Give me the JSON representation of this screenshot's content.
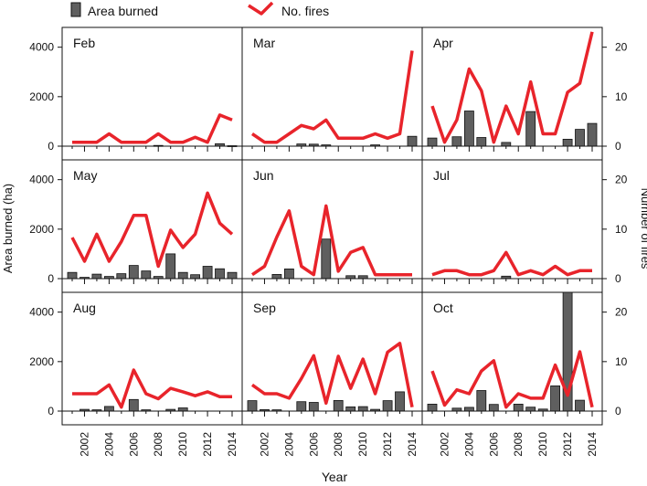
{
  "legend": {
    "bar_label": "Area burned",
    "line_label": "No. fires",
    "placement": "top"
  },
  "axes": {
    "xlabel": "Year",
    "ylabel_left": "Area burned (ha)",
    "ylabel_right": "Number of fires",
    "x_ticks": [
      "2002",
      "2004",
      "2006",
      "2008",
      "2010",
      "2012",
      "2014"
    ],
    "left_ticks": [
      "0",
      "2000",
      "4000"
    ],
    "right_ticks": [
      "0",
      "10",
      "20"
    ]
  },
  "colors": {
    "bar_fill": "#5f5f5f",
    "bar_stroke": "#111111",
    "line": "#e8242b",
    "frame": "#111111"
  },
  "chart_data": {
    "type": "bar",
    "layout": "3x3 small multiples",
    "grid": false,
    "years": [
      2001,
      2002,
      2003,
      2004,
      2005,
      2006,
      2007,
      2008,
      2009,
      2010,
      2011,
      2012,
      2013,
      2014
    ],
    "y_left": {
      "label": "Area burned (ha)",
      "range": [
        0,
        4800
      ]
    },
    "y_right": {
      "label": "Number of fires",
      "range": [
        0,
        24
      ]
    },
    "panels": [
      {
        "month": "Feb",
        "area": [
          0,
          0,
          0,
          0,
          0,
          0,
          0,
          30,
          0,
          0,
          0,
          0,
          100,
          20
        ],
        "fires": [
          0.8,
          0.8,
          0.8,
          2.5,
          0.8,
          0.8,
          0.8,
          2.5,
          0.8,
          0.8,
          1.8,
          0.8,
          6.3,
          5.3
        ]
      },
      {
        "month": "Mar",
        "area": [
          0,
          0,
          0,
          0,
          90,
          80,
          50,
          0,
          0,
          0,
          50,
          0,
          0,
          400
        ],
        "fires": [
          2.5,
          0.8,
          0.8,
          2.5,
          4.2,
          3.5,
          5.3,
          1.6,
          1.6,
          1.6,
          2.5,
          1.6,
          2.5,
          19.3
        ]
      },
      {
        "month": "Apr",
        "area": [
          330,
          0,
          380,
          1420,
          350,
          0,
          150,
          0,
          1400,
          0,
          0,
          280,
          680,
          920
        ],
        "fires": [
          8.1,
          0.8,
          5.3,
          15.6,
          11.2,
          0.8,
          8.1,
          2.5,
          13.0,
          2.5,
          2.5,
          10.9,
          12.7,
          23.1
        ]
      },
      {
        "month": "May",
        "area": [
          250,
          50,
          180,
          90,
          200,
          530,
          310,
          90,
          1000,
          250,
          160,
          500,
          400,
          250
        ],
        "fires": [
          8.3,
          3.5,
          9.0,
          3.5,
          7.5,
          12.8,
          12.8,
          2.5,
          9.8,
          6.3,
          9.0,
          17.3,
          11.2,
          9.0
        ]
      },
      {
        "month": "Jun",
        "area": [
          0,
          0,
          170,
          390,
          0,
          0,
          1600,
          0,
          120,
          120,
          0,
          0,
          0,
          0
        ],
        "fires": [
          0.8,
          2.5,
          8.4,
          13.7,
          2.5,
          0.8,
          14.7,
          1.5,
          5.3,
          6.3,
          0.8,
          0.8,
          0.8,
          0.8
        ]
      },
      {
        "month": "Jul",
        "area": [
          0,
          0,
          0,
          0,
          0,
          0,
          100,
          0,
          0,
          0,
          0,
          0,
          0,
          0
        ],
        "fires": [
          0.8,
          1.6,
          1.6,
          0.8,
          0.8,
          1.6,
          5.3,
          0.8,
          1.6,
          0.8,
          2.5,
          0.8,
          1.6,
          1.6
        ]
      },
      {
        "month": "Aug",
        "area": [
          0,
          70,
          50,
          190,
          0,
          470,
          50,
          0,
          70,
          130,
          0,
          0,
          0,
          0
        ],
        "fires": [
          3.5,
          3.5,
          3.5,
          5.3,
          0.8,
          8.3,
          3.5,
          2.5,
          4.6,
          3.9,
          3.1,
          3.9,
          2.9,
          2.9
        ]
      },
      {
        "month": "Sep",
        "area": [
          420,
          60,
          50,
          0,
          380,
          350,
          0,
          430,
          170,
          180,
          70,
          420,
          780,
          0
        ],
        "fires": [
          5.3,
          3.5,
          3.5,
          2.6,
          6.6,
          11.2,
          1.6,
          11.1,
          4.6,
          10.5,
          3.5,
          11.9,
          13.7,
          0.8
        ]
      },
      {
        "month": "Oct",
        "area": [
          280,
          0,
          120,
          150,
          830,
          270,
          0,
          280,
          160,
          80,
          1020,
          4800,
          440,
          0
        ],
        "fires": [
          8.1,
          1.2,
          4.3,
          3.5,
          8.1,
          10.2,
          0.8,
          3.5,
          2.6,
          2.6,
          9.3,
          3.2,
          12.0,
          0.8
        ]
      }
    ]
  }
}
